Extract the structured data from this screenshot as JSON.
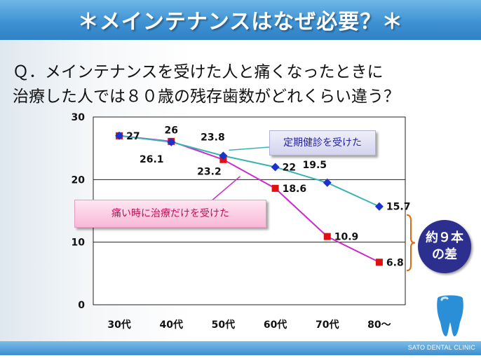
{
  "header": {
    "title": "＊メインテナンスはなぜ必要？＊"
  },
  "question": {
    "line1": "Ｑ．メインテナンスを受けた人と痛くなったときに",
    "line2": "治療した人では８０歳の残存歯数がどれくらい違う？"
  },
  "callouts": {
    "maintenance": "定期健診を受けた",
    "pain": "痛い時に治療だけを受けた"
  },
  "badge": {
    "line1": "約９本",
    "line2": "の差"
  },
  "footer": {
    "text": "SATO DENTAL CLINIC"
  },
  "colors": {
    "maintenance": "#3cb3b3",
    "pain": "#cc2ccc",
    "marker_blue": "#1a33cc",
    "marker_red": "#e01010",
    "header": "#3f93d4",
    "badge": "#2d2f8e"
  },
  "chart_data": {
    "type": "line",
    "categories": [
      "30代",
      "40代",
      "50代",
      "60代",
      "70代",
      "80〜"
    ],
    "ylim": [
      0,
      30
    ],
    "yticks": [
      0,
      10,
      20,
      30
    ],
    "grid": true,
    "series": [
      {
        "name": "定期健診を受けた",
        "values": [
          27,
          26,
          23.8,
          22,
          19.5,
          15.7
        ],
        "labels": [
          "27",
          "26",
          "23.8",
          "22",
          "19.5",
          "15.7"
        ]
      },
      {
        "name": "痛い時に治療だけを受けた",
        "values": [
          27,
          26.1,
          23.2,
          18.6,
          10.9,
          6.8
        ],
        "labels": [
          "",
          "26.1",
          "23.2",
          "18.6",
          "10.9",
          "6.8"
        ]
      }
    ]
  }
}
